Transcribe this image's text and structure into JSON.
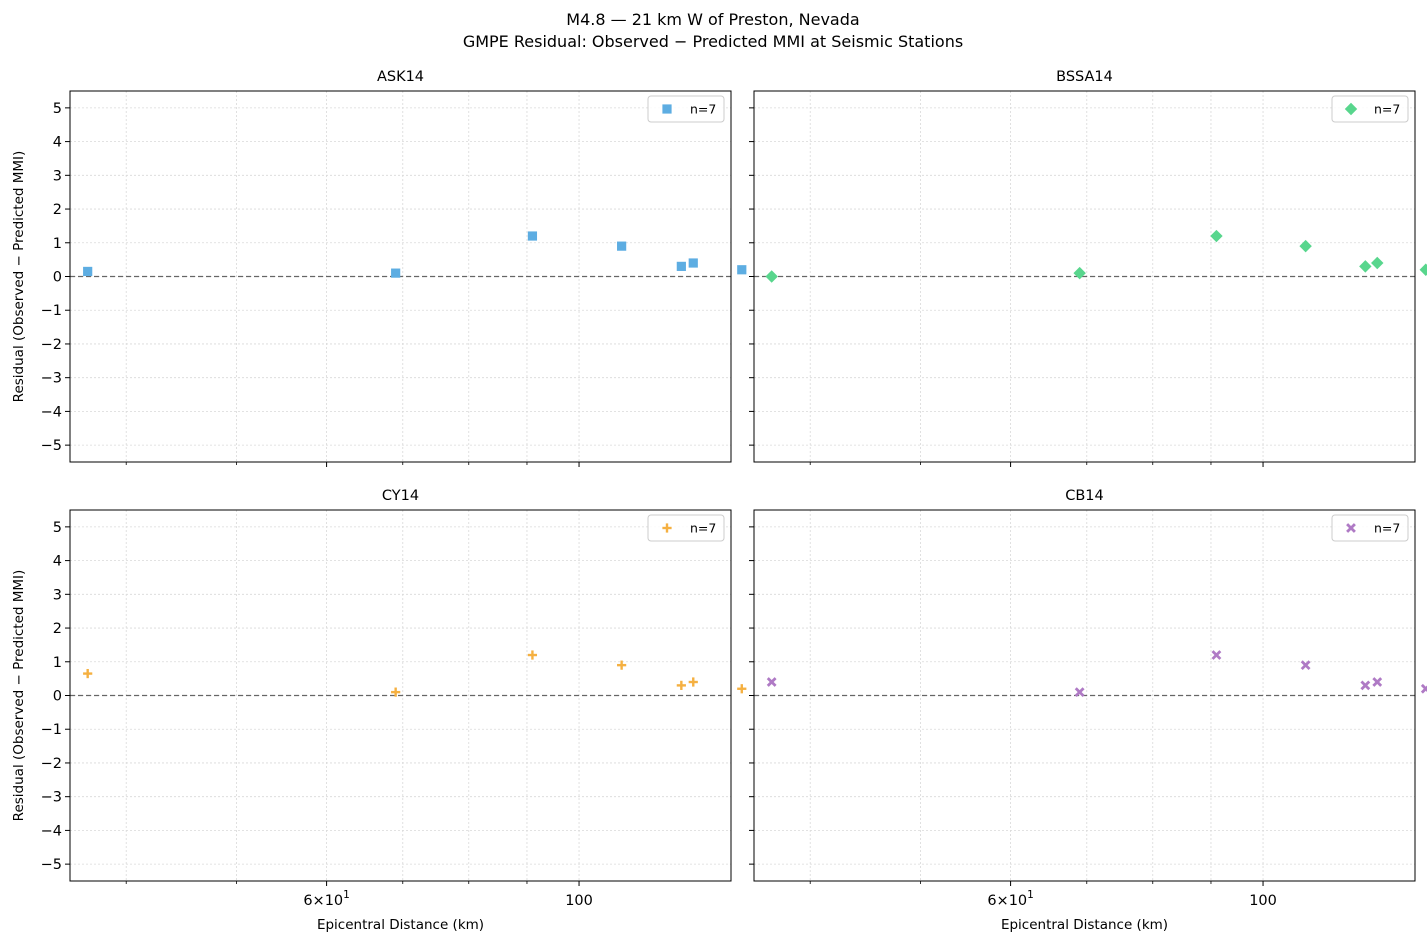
{
  "figure": {
    "title_line1": "M4.8 — 21 km W of Preston, Nevada",
    "title_line2": "GMPE Residual: Observed − Predicted MMI at Seismic Stations"
  },
  "chart_data": [
    {
      "type": "scatter",
      "title": "ASK14",
      "xlabel": "",
      "ylabel": "Residual (Observed − Predicted MMI)",
      "xscale": "log",
      "xlim": [
        35.7,
        136
      ],
      "ylim": [
        -5.5,
        5.5
      ],
      "grid": true,
      "legend_position": "top-right",
      "marker": "square",
      "color": "#5DADE2",
      "series": [
        {
          "name": "n=7",
          "x": [
            37,
            69,
            91,
            109,
            123,
            126,
            139
          ],
          "y": [
            0.15,
            0.1,
            1.2,
            0.9,
            0.3,
            0.4,
            0.2
          ]
        }
      ],
      "reference_line": {
        "y": 0,
        "style": "dashed",
        "color": "#666666"
      }
    },
    {
      "type": "scatter",
      "title": "BSSA14",
      "xlabel": "",
      "ylabel": "",
      "xscale": "log",
      "xlim": [
        35.7,
        136
      ],
      "ylim": [
        -5.5,
        5.5
      ],
      "grid": true,
      "legend_position": "top-right",
      "marker": "diamond",
      "color": "#58D68D",
      "series": [
        {
          "name": "n=7",
          "x": [
            37,
            69,
            91,
            109,
            123,
            126,
            139
          ],
          "y": [
            0.0,
            0.1,
            1.2,
            0.9,
            0.3,
            0.4,
            0.2
          ]
        }
      ],
      "reference_line": {
        "y": 0,
        "style": "dashed",
        "color": "#666666"
      }
    },
    {
      "type": "scatter",
      "title": "CY14",
      "xlabel": "Epicentral Distance (km)",
      "ylabel": "Residual (Observed − Predicted MMI)",
      "xscale": "log",
      "xlim": [
        35.7,
        136
      ],
      "ylim": [
        -5.5,
        5.5
      ],
      "grid": true,
      "legend_position": "top-right",
      "marker": "plus",
      "color": "#F5B041",
      "series": [
        {
          "name": "n=7",
          "x": [
            37,
            69,
            91,
            109,
            123,
            126,
            139
          ],
          "y": [
            0.65,
            0.1,
            1.2,
            0.9,
            0.3,
            0.4,
            0.2
          ]
        }
      ],
      "reference_line": {
        "y": 0,
        "style": "dashed",
        "color": "#666666"
      }
    },
    {
      "type": "scatter",
      "title": "CB14",
      "xlabel": "Epicentral Distance (km)",
      "ylabel": "",
      "xscale": "log",
      "xlim": [
        35.7,
        136
      ],
      "ylim": [
        -5.5,
        5.5
      ],
      "grid": true,
      "legend_position": "top-right",
      "marker": "x",
      "color": "#AF7AC5",
      "series": [
        {
          "name": "n=7",
          "x": [
            37,
            69,
            91,
            109,
            123,
            126,
            139
          ],
          "y": [
            0.4,
            0.1,
            1.2,
            0.9,
            0.3,
            0.4,
            0.2
          ]
        }
      ],
      "reference_line": {
        "y": 0,
        "style": "dashed",
        "color": "#666666"
      }
    }
  ],
  "axes": {
    "y_ticks": [
      -5,
      -4,
      -3,
      -2,
      -1,
      0,
      1,
      2,
      3,
      4,
      5
    ],
    "x_ticks": [
      {
        "value": 60,
        "label_base": "6×10",
        "label_exp": "1"
      },
      {
        "value": 100,
        "label": "100"
      }
    ],
    "x_minor_ticks": [
      40,
      50,
      70,
      80,
      90
    ]
  }
}
